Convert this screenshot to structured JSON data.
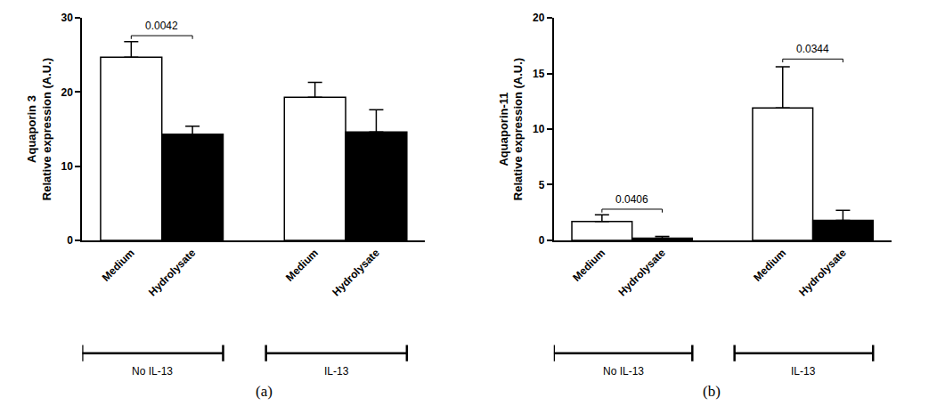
{
  "chart_data": [
    {
      "type": "bar",
      "panel": "(a)",
      "ylabel": [
        "Aquaporin 3",
        "Relative expression (A.U.)"
      ],
      "categories": [
        "Medium",
        "Hydrolysate",
        "Medium",
        "Hydrolysate"
      ],
      "group_labels": [
        "No IL-13",
        "IL-13"
      ],
      "values": [
        24.7,
        14.3,
        19.3,
        14.6
      ],
      "errors": [
        2.1,
        1.1,
        2.0,
        3.0
      ],
      "colors": [
        "#ffffff",
        "#000000",
        "#ffffff",
        "#000000"
      ],
      "ylim": [
        0,
        30
      ],
      "yticks": [
        0,
        10,
        20,
        30
      ],
      "grid": false,
      "annotations": [
        {
          "text": "0.0042",
          "from": 0,
          "to": 1,
          "y": 27.6
        }
      ]
    },
    {
      "type": "bar",
      "panel": "(b)",
      "ylabel": [
        "Aquaporin-11",
        "Relative expression (A.U.)"
      ],
      "categories": [
        "Medium",
        "Hydrolysate",
        "Medium",
        "Hydrolysate"
      ],
      "group_labels": [
        "No IL-13",
        "IL-13"
      ],
      "values": [
        1.7,
        0.2,
        11.9,
        1.8
      ],
      "errors": [
        0.6,
        0.15,
        3.7,
        0.9
      ],
      "colors": [
        "#ffffff",
        "#000000",
        "#ffffff",
        "#000000"
      ],
      "ylim": [
        0,
        20
      ],
      "yticks": [
        0,
        5,
        10,
        15,
        20
      ],
      "grid": false,
      "annotations": [
        {
          "text": "0.0406",
          "from": 0,
          "to": 1,
          "y": 2.8
        },
        {
          "text": "0.0344",
          "from": 2,
          "to": 3,
          "y": 16.3
        }
      ]
    }
  ]
}
